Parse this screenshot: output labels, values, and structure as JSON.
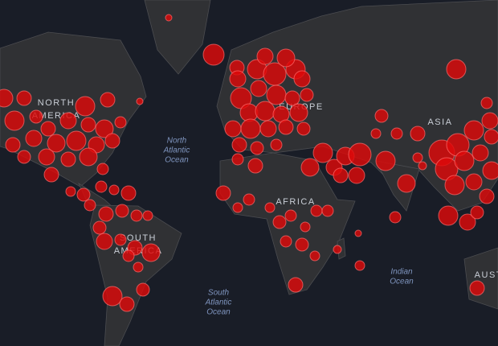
{
  "map": {
    "continent_labels": [
      {
        "lines": [
          "NORTH",
          "AMERICA"
        ]
      },
      {
        "lines": [
          "EUROPE"
        ]
      },
      {
        "lines": [
          "ASIA"
        ]
      },
      {
        "lines": [
          "AFRICA"
        ]
      },
      {
        "lines": [
          "SOUTH",
          "AMERICA"
        ]
      },
      {
        "lines": [
          "AUSTRALIA"
        ]
      }
    ],
    "ocean_labels": [
      {
        "lines": [
          "North",
          "Atlantic",
          "Ocean"
        ]
      },
      {
        "lines": [
          "South",
          "Atlantic",
          "Ocean"
        ]
      },
      {
        "lines": [
          "Indian",
          "Ocean"
        ]
      }
    ]
  }
}
